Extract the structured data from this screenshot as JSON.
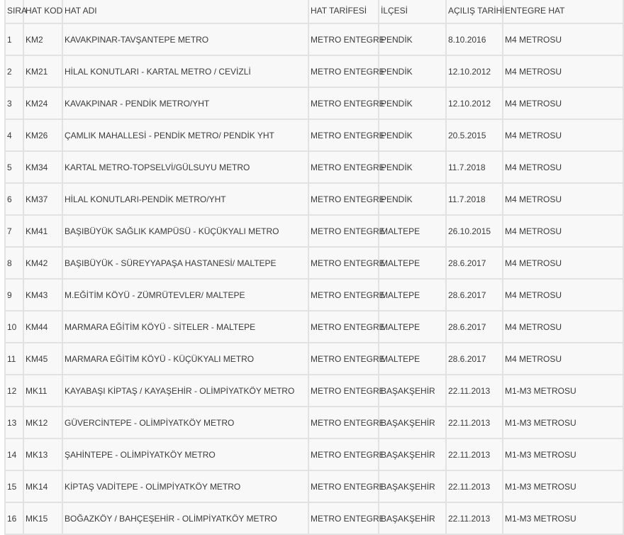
{
  "headers": [
    "SIRA",
    "HAT KOD",
    "HAT ADI",
    "HAT TARİFESİ",
    "İLÇESİ",
    "AÇILIŞ TARİHİ",
    "ENTEGRE HAT"
  ],
  "rows": [
    [
      "1",
      "KM2",
      "KAVAKPINAR-TAVŞANTEPE METRO",
      "METRO ENTEGRE",
      "PENDİK",
      "8.10.2016",
      "M4 METROSU"
    ],
    [
      "2",
      "KM21",
      "HİLAL KONUTLARI - KARTAL METRO / CEVİZLİ",
      "METRO ENTEGRE",
      "PENDİK",
      "12.10.2012",
      "M4 METROSU"
    ],
    [
      "3",
      "KM24",
      "KAVAKPINAR - PENDİK METRO/YHT",
      "METRO ENTEGRE",
      "PENDİK",
      "12.10.2012",
      "M4 METROSU"
    ],
    [
      "4",
      "KM26",
      "ÇAMLIK MAHALLESİ - PENDİK METRO/ PENDİK YHT",
      "METRO ENTEGRE",
      "PENDİK",
      "20.5.2015",
      "M4 METROSU"
    ],
    [
      "5",
      "KM34",
      "KARTAL METRO-TOPSELVİ/GÜLSUYU METRO",
      "METRO ENTEGRE",
      "PENDİK",
      "11.7.2018",
      "M4 METROSU"
    ],
    [
      "6",
      "KM37",
      "HİLAL KONUTLARI-PENDİK METRO/YHT",
      "METRO ENTEGRE",
      "PENDİK",
      "11.7.2018",
      "M4 METROSU"
    ],
    [
      "7",
      "KM41",
      "BAŞIBÜYÜK SAĞLIK KAMPÜSÜ - KÜÇÜKYALI METRO",
      "METRO ENTEGRE",
      "MALTEPE",
      "26.10.2015",
      "M4 METROSU"
    ],
    [
      "8",
      "KM42",
      "BAŞIBÜYÜK - SÜREYYAPAŞA HASTANESİ/ MALTEPE",
      "METRO ENTEGRE",
      "MALTEPE",
      "28.6.2017",
      "M4 METROSU"
    ],
    [
      "9",
      "KM43",
      "M.EĞİTİM KÖYÜ - ZÜMRÜTEVLER/ MALTEPE",
      "METRO ENTEGRE",
      "MALTEPE",
      "28.6.2017",
      "M4 METROSU"
    ],
    [
      "10",
      "KM44",
      "MARMARA EĞİTİM KÖYÜ - SİTELER - MALTEPE",
      "METRO ENTEGRE",
      "MALTEPE",
      "28.6.2017",
      "M4 METROSU"
    ],
    [
      "11",
      "KM45",
      "MARMARA EĞİTİM KÖYÜ - KÜÇÜKYALI METRO",
      "METRO ENTEGRE",
      "MALTEPE",
      "28.6.2017",
      "M4 METROSU"
    ],
    [
      "12",
      "MK11",
      "KAYABAŞI KİPTAŞ / KAYAŞEHİR - OLİMPİYATKÖY METRO",
      "METRO ENTEGRE",
      "BAŞAKŞEHİR",
      "22.11.2013",
      "M1-M3 METROSU"
    ],
    [
      "13",
      "MK12",
      "GÜVERCİNTEPE - OLİMPİYATKÖY METRO",
      "METRO ENTEGRE",
      "BAŞAKŞEHİR",
      "22.11.2013",
      "M1-M3 METROSU"
    ],
    [
      "14",
      "MK13",
      "ŞAHİNTEPE - OLİMPİYATKÖY METRO",
      "METRO ENTEGRE",
      "BAŞAKŞEHİR",
      "22.11.2013",
      "M1-M3 METROSU"
    ],
    [
      "15",
      "MK14",
      "KİPTAŞ VADİTEPE - OLİMPİYATKÖY METRO",
      "METRO ENTEGRE",
      "BAŞAKŞEHİR",
      "22.11.2013",
      "M1-M3 METROSU"
    ],
    [
      "16",
      "MK15",
      "BOĞAZKÖY / BAHÇEŞEHİR - OLİMPİYATKÖY METRO",
      "METRO ENTEGRE",
      "BAŞAKŞEHİR",
      "22.11.2013",
      "M1-M3 METROSU"
    ]
  ]
}
